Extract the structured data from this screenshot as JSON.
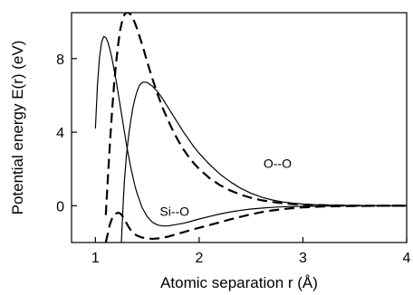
{
  "chart_data": {
    "type": "line",
    "title": "",
    "xlabel": "Atomic separation r (Å)",
    "ylabel": "Potential energy E(r) (eV)",
    "xlim": [
      0.77,
      4.0
    ],
    "ylim": [
      -2.0,
      10.5
    ],
    "xticks": [
      1,
      2,
      3,
      4
    ],
    "yticks": [
      0,
      4,
      8
    ],
    "grid": false,
    "annotations": [
      {
        "text": "O--O",
        "x": 2.62,
        "y": 2.05
      },
      {
        "text": "Si--O",
        "x": 1.62,
        "y": -0.55
      }
    ],
    "series": [
      {
        "style": "solid",
        "x": [
          1.0,
          1.02,
          1.04,
          1.06,
          1.08,
          1.1,
          1.12,
          1.14,
          1.16,
          1.18,
          1.2,
          1.22,
          1.24,
          1.26,
          1.28,
          1.3,
          1.32,
          1.34,
          1.36,
          1.38,
          1.4,
          1.45,
          1.5,
          1.55,
          1.6,
          1.65,
          1.7,
          1.75,
          1.8,
          1.85,
          1.9,
          1.95,
          2.0,
          2.1,
          2.2,
          2.3,
          2.4,
          2.5,
          2.6,
          2.7,
          2.8,
          2.9,
          3.0,
          3.2,
          3.4,
          3.6,
          3.8,
          4.0
        ],
        "y": [
          4.2,
          6.6,
          8.1,
          8.9,
          9.2,
          9.15,
          8.9,
          8.5,
          8.0,
          7.4,
          6.8,
          6.1,
          5.4,
          4.7,
          4.0,
          3.3,
          2.7,
          2.1,
          1.6,
          1.1,
          0.7,
          -0.1,
          -0.6,
          -0.9,
          -1.05,
          -1.1,
          -1.1,
          -1.05,
          -1.0,
          -0.95,
          -0.88,
          -0.8,
          -0.72,
          -0.58,
          -0.45,
          -0.34,
          -0.25,
          -0.18,
          -0.13,
          -0.09,
          -0.06,
          -0.04,
          -0.03,
          -0.02,
          -0.01,
          0.0,
          0.0,
          0.0
        ]
      },
      {
        "style": "solid",
        "x": [
          1.25,
          1.26,
          1.27,
          1.28,
          1.3,
          1.32,
          1.34,
          1.36,
          1.38,
          1.4,
          1.42,
          1.44,
          1.46,
          1.48,
          1.5,
          1.55,
          1.6,
          1.65,
          1.7,
          1.75,
          1.8,
          1.85,
          1.9,
          1.95,
          2.0,
          2.1,
          2.2,
          2.3,
          2.4,
          2.5,
          2.6,
          2.7,
          2.8,
          2.9,
          3.0,
          3.1,
          3.2,
          3.3,
          3.4,
          3.6,
          3.8,
          4.0
        ],
        "y": [
          -2.0,
          -0.8,
          0.4,
          1.4,
          2.8,
          3.8,
          4.6,
          5.3,
          5.8,
          6.2,
          6.5,
          6.65,
          6.72,
          6.72,
          6.7,
          6.5,
          6.2,
          5.8,
          5.35,
          4.9,
          4.45,
          4.0,
          3.6,
          3.2,
          2.85,
          2.25,
          1.72,
          1.3,
          0.95,
          0.68,
          0.47,
          0.32,
          0.21,
          0.14,
          0.09,
          0.06,
          0.04,
          0.03,
          0.02,
          0.01,
          0.0,
          0.0
        ]
      },
      {
        "style": "dashed",
        "x": [
          1.1,
          1.12,
          1.14,
          1.16,
          1.18,
          1.2,
          1.22,
          1.24,
          1.26,
          1.28,
          1.3,
          1.32,
          1.34,
          1.36,
          1.38,
          1.4,
          1.42,
          1.44,
          1.46,
          1.48,
          1.5,
          1.55,
          1.6,
          1.65,
          1.7,
          1.75,
          1.8,
          1.85,
          1.9,
          1.95,
          2.0,
          2.1,
          2.2,
          2.3,
          2.4,
          2.5,
          2.6,
          2.7,
          2.8,
          2.9,
          3.0,
          3.1,
          3.2,
          3.3,
          3.4,
          3.6,
          3.8,
          4.0
        ],
        "y": [
          -0.5,
          1.5,
          3.4,
          5.1,
          6.6,
          7.8,
          8.8,
          9.6,
          10.1,
          10.4,
          10.5,
          10.5,
          10.4,
          10.2,
          9.95,
          9.65,
          9.3,
          8.95,
          8.6,
          8.2,
          7.8,
          6.9,
          6.05,
          5.3,
          4.65,
          4.05,
          3.52,
          3.05,
          2.65,
          2.3,
          2.0,
          1.5,
          1.12,
          0.83,
          0.6,
          0.43,
          0.3,
          0.21,
          0.14,
          0.09,
          0.06,
          0.04,
          0.03,
          0.02,
          0.01,
          0.0,
          0.0,
          0.0
        ]
      },
      {
        "style": "dashed",
        "x": [
          1.1,
          1.12,
          1.14,
          1.16,
          1.18,
          1.2,
          1.22,
          1.24,
          1.26,
          1.28,
          1.3,
          1.32,
          1.34,
          1.36,
          1.38,
          1.4,
          1.45,
          1.5,
          1.55,
          1.6,
          1.65,
          1.7,
          1.75,
          1.8,
          1.85,
          1.9,
          1.95,
          2.0,
          2.1,
          2.2,
          2.3,
          2.4,
          2.5,
          2.6,
          2.7,
          2.8,
          2.9,
          3.0,
          3.2,
          3.4,
          3.6,
          3.8,
          4.0
        ],
        "y": [
          -2.0,
          -1.5,
          -1.0,
          -0.7,
          -0.5,
          -0.42,
          -0.38,
          -0.42,
          -0.55,
          -0.75,
          -0.95,
          -1.15,
          -1.32,
          -1.45,
          -1.55,
          -1.62,
          -1.73,
          -1.78,
          -1.8,
          -1.78,
          -1.74,
          -1.68,
          -1.6,
          -1.52,
          -1.44,
          -1.35,
          -1.27,
          -1.2,
          -1.05,
          -0.9,
          -0.74,
          -0.6,
          -0.47,
          -0.35,
          -0.26,
          -0.19,
          -0.13,
          -0.09,
          -0.04,
          -0.02,
          -0.01,
          0.0,
          0.0
        ]
      }
    ]
  }
}
